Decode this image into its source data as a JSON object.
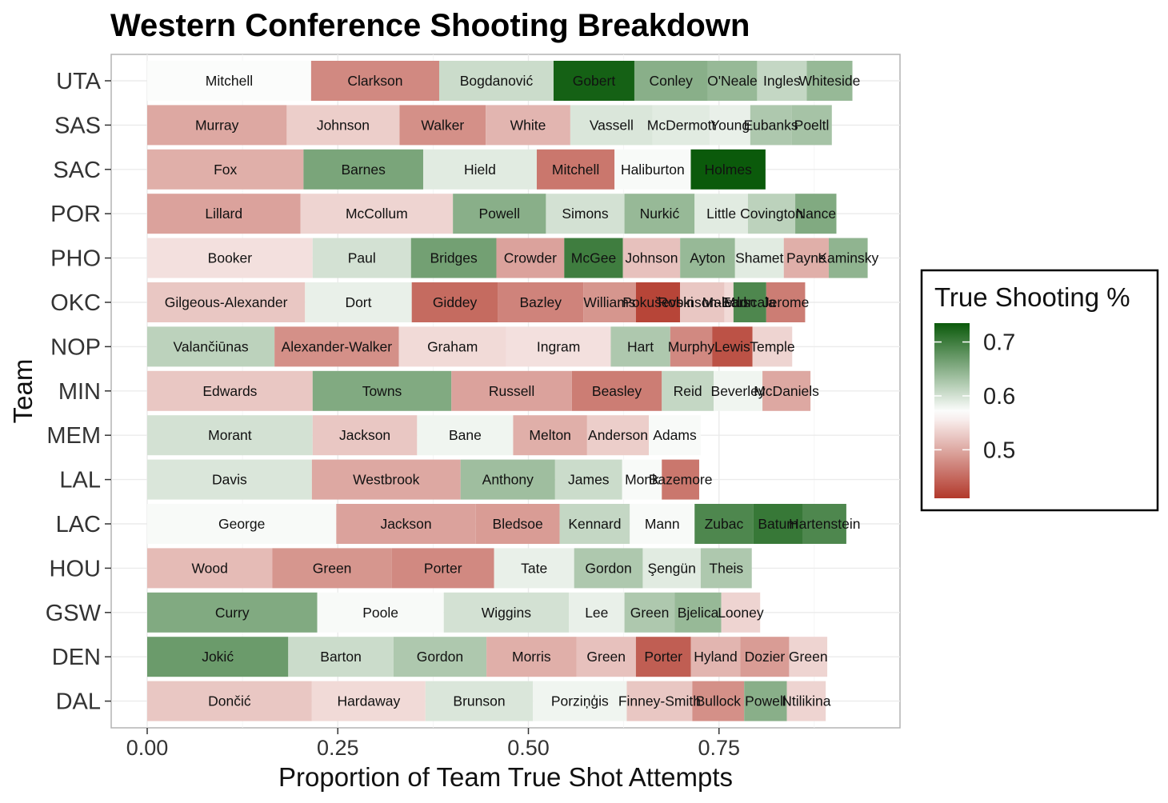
{
  "chart_data": {
    "type": "bar",
    "orientation": "horizontal-stacked",
    "title": "Western Conference Shooting Breakdown",
    "xlabel": "Proportion of Team True Shot Attempts",
    "ylabel": "Team",
    "xlim": [
      0,
      1
    ],
    "xticks": [
      "0.00",
      "0.25",
      "0.50",
      "0.75"
    ],
    "xtick_values": [
      0,
      0.25,
      0.5,
      0.75
    ],
    "grid": true,
    "legend": {
      "title": "True Shooting %",
      "placement": "right",
      "labels": [
        "0.7",
        "0.6",
        "0.5"
      ],
      "label_values": [
        0.7,
        0.6,
        0.5
      ],
      "scale_min": 0.41,
      "scale_max": 0.735,
      "colors": {
        "low": "#b2392b",
        "mid": "#ffffff",
        "high": "#0b5a0b"
      },
      "midpoint": 0.57
    },
    "teams": [
      {
        "team": "UTA",
        "players": [
          {
            "name": "Mitchell",
            "share": 0.215,
            "ts": 0.573
          },
          {
            "name": "Clarkson",
            "share": 0.168,
            "ts": 0.475
          },
          {
            "name": "Bogdanović",
            "share": 0.15,
            "ts": 0.605
          },
          {
            "name": "Gobert",
            "share": 0.106,
            "ts": 0.728
          },
          {
            "name": "Conley",
            "share": 0.096,
            "ts": 0.65
          },
          {
            "name": "O'Neale",
            "share": 0.065,
            "ts": 0.64
          },
          {
            "name": "Ingles",
            "share": 0.065,
            "ts": 0.61
          },
          {
            "name": "Whiteside",
            "share": 0.06,
            "ts": 0.64
          }
        ]
      },
      {
        "team": "SAS",
        "players": [
          {
            "name": "Murray",
            "share": 0.183,
            "ts": 0.5
          },
          {
            "name": "Johnson",
            "share": 0.148,
            "ts": 0.53
          },
          {
            "name": "Walker",
            "share": 0.113,
            "ts": 0.48
          },
          {
            "name": "White",
            "share": 0.111,
            "ts": 0.51
          },
          {
            "name": "Vassell",
            "share": 0.108,
            "ts": 0.595
          },
          {
            "name": "McDermott",
            "share": 0.075,
            "ts": 0.59
          },
          {
            "name": "Young",
            "share": 0.053,
            "ts": 0.585
          },
          {
            "name": "Eubanks",
            "share": 0.054,
            "ts": 0.625
          },
          {
            "name": "Poeltl",
            "share": 0.053,
            "ts": 0.63
          }
        ]
      },
      {
        "team": "SAC",
        "players": [
          {
            "name": "Fox",
            "share": 0.205,
            "ts": 0.505
          },
          {
            "name": "Barnes",
            "share": 0.157,
            "ts": 0.66
          },
          {
            "name": "Hield",
            "share": 0.149,
            "ts": 0.59
          },
          {
            "name": "Mitchell",
            "share": 0.102,
            "ts": 0.46
          },
          {
            "name": "Haliburton",
            "share": 0.1,
            "ts": 0.575
          },
          {
            "name": "Holmes",
            "share": 0.098,
            "ts": 0.735
          }
        ]
      },
      {
        "team": "POR",
        "players": [
          {
            "name": "Lillard",
            "share": 0.201,
            "ts": 0.495
          },
          {
            "name": "McCollum",
            "share": 0.2,
            "ts": 0.535
          },
          {
            "name": "Powell",
            "share": 0.122,
            "ts": 0.65
          },
          {
            "name": "Simons",
            "share": 0.103,
            "ts": 0.6
          },
          {
            "name": "Nurkić",
            "share": 0.092,
            "ts": 0.64
          },
          {
            "name": "Little",
            "share": 0.07,
            "ts": 0.59
          },
          {
            "name": "Covington",
            "share": 0.062,
            "ts": 0.615
          },
          {
            "name": "Nance",
            "share": 0.054,
            "ts": 0.655
          }
        ]
      },
      {
        "team": "PHO",
        "players": [
          {
            "name": "Booker",
            "share": 0.217,
            "ts": 0.545
          },
          {
            "name": "Paul",
            "share": 0.129,
            "ts": 0.6
          },
          {
            "name": "Bridges",
            "share": 0.112,
            "ts": 0.665
          },
          {
            "name": "Crowder",
            "share": 0.089,
            "ts": 0.495
          },
          {
            "name": "McGee",
            "share": 0.077,
            "ts": 0.7
          },
          {
            "name": "Johnson",
            "share": 0.075,
            "ts": 0.52
          },
          {
            "name": "Ayton",
            "share": 0.072,
            "ts": 0.64
          },
          {
            "name": "Shamet",
            "share": 0.064,
            "ts": 0.59
          },
          {
            "name": "Payne",
            "share": 0.059,
            "ts": 0.505
          },
          {
            "name": "Kaminsky",
            "share": 0.051,
            "ts": 0.645
          }
        ]
      },
      {
        "team": "OKC",
        "players": [
          {
            "name": "Gilgeous-Alexander",
            "share": 0.207,
            "ts": 0.525
          },
          {
            "name": "Dort",
            "share": 0.14,
            "ts": 0.585
          },
          {
            "name": "Giddey",
            "share": 0.113,
            "ts": 0.45
          },
          {
            "name": "Bazley",
            "share": 0.112,
            "ts": 0.47
          },
          {
            "name": "Williams",
            "share": 0.069,
            "ts": 0.485
          },
          {
            "name": "Pokuševski",
            "share": 0.058,
            "ts": 0.42
          },
          {
            "name": "Robinson-Earl",
            "share": 0.058,
            "ts": 0.525
          },
          {
            "name": "Maledon",
            "share": 0.012,
            "ts": 0.54
          },
          {
            "name": "Muscala",
            "share": 0.043,
            "ts": 0.69
          },
          {
            "name": "Jerome",
            "share": 0.051,
            "ts": 0.465
          }
        ]
      },
      {
        "team": "NOP",
        "players": [
          {
            "name": "Valančiūnas",
            "share": 0.167,
            "ts": 0.615
          },
          {
            "name": "Alexander-Walker",
            "share": 0.163,
            "ts": 0.48
          },
          {
            "name": "Graham",
            "share": 0.141,
            "ts": 0.54
          },
          {
            "name": "Ingram",
            "share": 0.137,
            "ts": 0.545
          },
          {
            "name": "Hart",
            "share": 0.078,
            "ts": 0.625
          },
          {
            "name": "Murphy",
            "share": 0.055,
            "ts": 0.475
          },
          {
            "name": "Lewis",
            "share": 0.053,
            "ts": 0.43
          },
          {
            "name": "Temple",
            "share": 0.052,
            "ts": 0.535
          }
        ]
      },
      {
        "team": "MIN",
        "players": [
          {
            "name": "Edwards",
            "share": 0.217,
            "ts": 0.525
          },
          {
            "name": "Towns",
            "share": 0.182,
            "ts": 0.655
          },
          {
            "name": "Russell",
            "share": 0.158,
            "ts": 0.495
          },
          {
            "name": "Beasley",
            "share": 0.118,
            "ts": 0.465
          },
          {
            "name": "Reid",
            "share": 0.068,
            "ts": 0.61
          },
          {
            "name": "Beverley",
            "share": 0.064,
            "ts": 0.58
          },
          {
            "name": "McDaniels",
            "share": 0.063,
            "ts": 0.5
          }
        ]
      },
      {
        "team": "MEM",
        "players": [
          {
            "name": "Morant",
            "share": 0.217,
            "ts": 0.6
          },
          {
            "name": "Jackson",
            "share": 0.137,
            "ts": 0.525
          },
          {
            "name": "Bane",
            "share": 0.126,
            "ts": 0.58
          },
          {
            "name": "Melton",
            "share": 0.097,
            "ts": 0.505
          },
          {
            "name": "Anderson",
            "share": 0.081,
            "ts": 0.53
          },
          {
            "name": "Adams",
            "share": 0.068,
            "ts": 0.575
          }
        ]
      },
      {
        "team": "LAL",
        "players": [
          {
            "name": "Davis",
            "share": 0.216,
            "ts": 0.595
          },
          {
            "name": "Westbrook",
            "share": 0.195,
            "ts": 0.5
          },
          {
            "name": "Anthony",
            "share": 0.124,
            "ts": 0.635
          },
          {
            "name": "James",
            "share": 0.088,
            "ts": 0.605
          },
          {
            "name": "Monk",
            "share": 0.052,
            "ts": 0.575
          },
          {
            "name": "Bazemore",
            "share": 0.049,
            "ts": 0.46
          }
        ]
      },
      {
        "team": "LAC",
        "players": [
          {
            "name": "George",
            "share": 0.248,
            "ts": 0.575
          },
          {
            "name": "Jackson",
            "share": 0.183,
            "ts": 0.495
          },
          {
            "name": "Bledsoe",
            "share": 0.11,
            "ts": 0.49
          },
          {
            "name": "Kennard",
            "share": 0.092,
            "ts": 0.61
          },
          {
            "name": "Mann",
            "share": 0.085,
            "ts": 0.575
          },
          {
            "name": "Zubac",
            "share": 0.077,
            "ts": 0.69
          },
          {
            "name": "Batum",
            "share": 0.065,
            "ts": 0.705
          },
          {
            "name": "Hartenstein",
            "share": 0.057,
            "ts": 0.69
          }
        ]
      },
      {
        "team": "HOU",
        "players": [
          {
            "name": "Wood",
            "share": 0.164,
            "ts": 0.515
          },
          {
            "name": "Green",
            "share": 0.157,
            "ts": 0.485
          },
          {
            "name": "Porter",
            "share": 0.134,
            "ts": 0.475
          },
          {
            "name": "Tate",
            "share": 0.105,
            "ts": 0.585
          },
          {
            "name": "Gordon",
            "share": 0.09,
            "ts": 0.625
          },
          {
            "name": "Şengün",
            "share": 0.076,
            "ts": 0.59
          },
          {
            "name": "Theis",
            "share": 0.067,
            "ts": 0.625
          }
        ]
      },
      {
        "team": "GSW",
        "players": [
          {
            "name": "Curry",
            "share": 0.223,
            "ts": 0.655
          },
          {
            "name": "Poole",
            "share": 0.166,
            "ts": 0.575
          },
          {
            "name": "Wiggins",
            "share": 0.164,
            "ts": 0.6
          },
          {
            "name": "Lee",
            "share": 0.073,
            "ts": 0.585
          },
          {
            "name": "Green",
            "share": 0.066,
            "ts": 0.625
          },
          {
            "name": "Bjelica",
            "share": 0.061,
            "ts": 0.64
          },
          {
            "name": "Looney",
            "share": 0.051,
            "ts": 0.535
          }
        ]
      },
      {
        "team": "DEN",
        "players": [
          {
            "name": "Jokić",
            "share": 0.185,
            "ts": 0.67
          },
          {
            "name": "Barton",
            "share": 0.138,
            "ts": 0.605
          },
          {
            "name": "Gordon",
            "share": 0.122,
            "ts": 0.625
          },
          {
            "name": "Morris",
            "share": 0.118,
            "ts": 0.505
          },
          {
            "name": "Green",
            "share": 0.078,
            "ts": 0.52
          },
          {
            "name": "Porter",
            "share": 0.072,
            "ts": 0.44
          },
          {
            "name": "Hyland",
            "share": 0.065,
            "ts": 0.51
          },
          {
            "name": "Dozier",
            "share": 0.064,
            "ts": 0.49
          },
          {
            "name": "Green",
            "share": 0.05,
            "ts": 0.535
          }
        ]
      },
      {
        "team": "DAL",
        "players": [
          {
            "name": "Dončić",
            "share": 0.216,
            "ts": 0.525
          },
          {
            "name": "Hardaway",
            "share": 0.149,
            "ts": 0.54
          },
          {
            "name": "Brunson",
            "share": 0.141,
            "ts": 0.595
          },
          {
            "name": "Porziņģis",
            "share": 0.123,
            "ts": 0.58
          },
          {
            "name": "Finney-Smith",
            "share": 0.086,
            "ts": 0.525
          },
          {
            "name": "Bullock",
            "share": 0.068,
            "ts": 0.48
          },
          {
            "name": "Powell",
            "share": 0.056,
            "ts": 0.65
          },
          {
            "name": "Ntilikina",
            "share": 0.051,
            "ts": 0.535
          }
        ]
      }
    ]
  }
}
